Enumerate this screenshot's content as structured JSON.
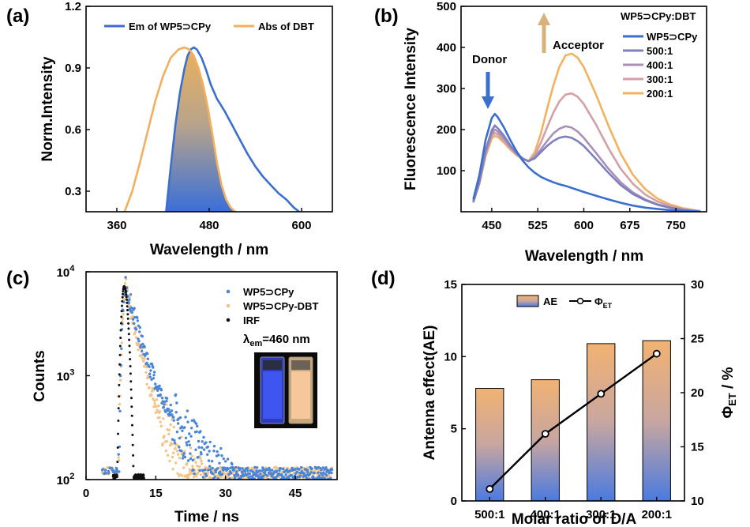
{
  "chart_data": [
    {
      "panel": "(a)",
      "type": "line",
      "xlabel": "Wavelength / nm",
      "ylabel": "Norm.Intensity",
      "xlim": [
        320,
        640
      ],
      "ylim": [
        0.2,
        1.2
      ],
      "xticks": [
        "360",
        "480",
        "600"
      ],
      "xtick_values": [
        360,
        480,
        600
      ],
      "yticks": [
        "0.3",
        "0.6",
        "0.9",
        "1.2"
      ],
      "ytick_values": [
        0.3,
        0.6,
        0.9,
        1.2
      ],
      "overlap_fill": true,
      "series": [
        {
          "name": "Em of WP5⊃CPy",
          "color": "#3a6fd0",
          "x": [
            424,
            430,
            436,
            442,
            448,
            452,
            456,
            460,
            464,
            470,
            476,
            482,
            490,
            500,
            510,
            520,
            530,
            540,
            550,
            560,
            570,
            580,
            590,
            597
          ],
          "y": [
            0.2,
            0.42,
            0.62,
            0.78,
            0.9,
            0.96,
            0.99,
            1.0,
            0.99,
            0.95,
            0.89,
            0.82,
            0.75,
            0.69,
            0.62,
            0.55,
            0.48,
            0.42,
            0.37,
            0.33,
            0.29,
            0.26,
            0.22,
            0.2
          ]
        },
        {
          "name": "Abs of DBT",
          "color": "#f0b060",
          "x": [
            370,
            380,
            390,
            400,
            410,
            420,
            430,
            440,
            448,
            454,
            460,
            466,
            472,
            478,
            484,
            490,
            496,
            502,
            508,
            514
          ],
          "y": [
            0.2,
            0.3,
            0.44,
            0.59,
            0.74,
            0.86,
            0.95,
            0.99,
            1.0,
            0.99,
            0.96,
            0.9,
            0.82,
            0.71,
            0.58,
            0.44,
            0.33,
            0.26,
            0.22,
            0.2
          ]
        }
      ]
    },
    {
      "panel": "(b)",
      "type": "line",
      "xlabel": "Wavelength / nm",
      "ylabel": "Fluorescence Intensity",
      "xlim": [
        400,
        800
      ],
      "ylim": [
        0,
        500
      ],
      "xticks": [
        "450",
        "525",
        "600",
        "675",
        "750"
      ],
      "xtick_values": [
        450,
        525,
        600,
        675,
        750
      ],
      "yticks": [
        "100",
        "200",
        "300",
        "400",
        "500"
      ],
      "ytick_values": [
        100,
        200,
        300,
        400,
        500
      ],
      "legend_title": "WP5⊃CPy:DBT",
      "annotations": [
        "Donor",
        "Acceptor"
      ],
      "x": [
        420,
        430,
        440,
        450,
        455,
        460,
        470,
        480,
        490,
        500,
        510,
        520,
        530,
        540,
        550,
        560,
        570,
        580,
        590,
        600,
        620,
        640,
        660,
        680,
        700,
        720,
        740,
        760,
        780,
        790
      ],
      "series": [
        {
          "name": "WP5⊃CPy",
          "color": "#3a6fd0",
          "values": [
            30,
            90,
            175,
            228,
            238,
            230,
            205,
            175,
            148,
            125,
            108,
            95,
            85,
            78,
            72,
            67,
            63,
            58,
            53,
            48,
            39,
            30,
            22,
            15,
            10,
            7,
            4,
            2,
            1,
            0
          ]
        },
        {
          "name": "500:1",
          "color": "#7f7fbf",
          "values": [
            25,
            75,
            150,
            198,
            210,
            203,
            185,
            162,
            143,
            130,
            123,
            130,
            145,
            160,
            172,
            180,
            183,
            180,
            172,
            160,
            128,
            95,
            65,
            43,
            28,
            17,
            10,
            5,
            2,
            1
          ]
        },
        {
          "name": "400:1",
          "color": "#a890b8",
          "values": [
            24,
            72,
            145,
            190,
            200,
            195,
            178,
            158,
            142,
            130,
            123,
            133,
            152,
            172,
            190,
            202,
            208,
            205,
            195,
            180,
            143,
            105,
            72,
            47,
            30,
            18,
            10,
            5,
            2,
            1
          ]
        },
        {
          "name": "300:1",
          "color": "#d4a0a8",
          "values": [
            23,
            70,
            140,
            185,
            192,
            188,
            172,
            155,
            140,
            129,
            123,
            138,
            168,
            205,
            240,
            268,
            285,
            288,
            280,
            262,
            212,
            155,
            105,
            68,
            42,
            25,
            14,
            7,
            3,
            1
          ]
        },
        {
          "name": "200:1",
          "color": "#f2b260",
          "values": [
            22,
            68,
            135,
            178,
            185,
            182,
            168,
            152,
            138,
            128,
            123,
            145,
            190,
            250,
            305,
            352,
            380,
            385,
            375,
            352,
            285,
            210,
            142,
            90,
            55,
            32,
            18,
            9,
            4,
            2
          ]
        }
      ]
    },
    {
      "panel": "(c)",
      "type": "scatter",
      "xlabel": "Time / ns",
      "ylabel": "Counts",
      "xlim": [
        0,
        54
      ],
      "ylim_log10": [
        2,
        4
      ],
      "xticks": [
        "0",
        "15",
        "30",
        "45"
      ],
      "xtick_values": [
        0,
        15,
        30,
        45
      ],
      "yticks_base": [
        "10",
        "10",
        "10"
      ],
      "yticks_exp": [
        "2",
        "3",
        "4"
      ],
      "ytick_values_log10": [
        2,
        3,
        4
      ],
      "annotation_main": "λ",
      "annotation_sub": "em",
      "annotation_rest": "=460 nm",
      "series": [
        {
          "name": "WP5⊃CPy",
          "color": "#4a86d8",
          "peak_time": 8.5,
          "peak_log10": 3.88,
          "tau1": 2.3,
          "tau2": 9.5,
          "frac_slow": 0.12
        },
        {
          "name": "WP5⊃CPy-DBT",
          "color": "#f2c48a",
          "peak_time": 8.5,
          "peak_log10": 3.88,
          "tau1": 1.9,
          "tau2": 8.0,
          "frac_slow": 0.09
        },
        {
          "name": "IRF",
          "color": "#111111",
          "peak_time": 8.2,
          "peak_log10": 3.86,
          "width": 0.9
        }
      ]
    },
    {
      "panel": "(d)",
      "type": "bar",
      "xlabel": "Molar ratio of D/A",
      "ylabel": "Antenna effect(AE)",
      "ylabel_right_main": "Φ",
      "ylabel_right_sub": "ET",
      "ylabel_right_rest": " / %",
      "categories": [
        "500:1",
        "400:1",
        "300:1",
        "200:1"
      ],
      "ylim": [
        0,
        15
      ],
      "yticks": [
        "0",
        "5",
        "10",
        "15"
      ],
      "ytick_values": [
        0,
        5,
        10,
        15
      ],
      "ylim_right": [
        10,
        30
      ],
      "yticks_right": [
        "10",
        "15",
        "20",
        "25",
        "30"
      ],
      "ytick_values_right": [
        10,
        15,
        20,
        25,
        30
      ],
      "series": [
        {
          "name": "AE",
          "type": "bar",
          "values": [
            7.8,
            8.4,
            10.9,
            11.1
          ]
        },
        {
          "name_main": "Φ",
          "name_sub": "ET",
          "type": "line",
          "axis": "right",
          "values": [
            11.1,
            16.2,
            19.9,
            23.6
          ]
        }
      ]
    }
  ],
  "panels": {
    "a": "(a)",
    "b": "(b)",
    "c": "(c)",
    "d": "(d)"
  },
  "colors": {
    "blue": "#3a6fd0",
    "orange": "#f0b060"
  }
}
